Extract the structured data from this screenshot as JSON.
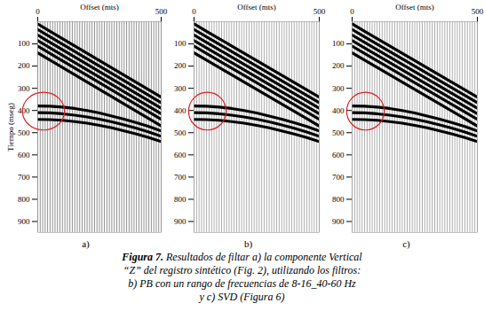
{
  "caption": {
    "label": "Figura 7.",
    "lines": [
      "Resultados de filtar a) la componente Vertical",
      "“Z” del registro sintético (Fig. 2), utilizando los filtros:",
      "b) PB con un rango de frecuencias de 8-16_40-60 Hz",
      "y c) SVD  (Figura 6)"
    ]
  },
  "chart_data": [
    {
      "type": "line",
      "title": "a)",
      "x_label": "Offset (mts)",
      "y_label": "Tiempo (mseg)",
      "xlim": [
        0,
        500
      ],
      "xticks": [
        0,
        500
      ],
      "ylim": [
        0,
        950
      ],
      "yticks": [
        100,
        200,
        300,
        400,
        500,
        600,
        700,
        800,
        900
      ],
      "x": [
        0,
        50,
        100,
        150,
        200,
        250,
        300,
        350,
        400,
        450,
        500
      ],
      "series": [
        {
          "color": "#000000",
          "values": [
            10,
            43,
            76,
            109,
            142,
            175,
            208,
            241,
            274,
            307,
            340
          ]
        },
        {
          "color": "#000000",
          "values": [
            35,
            68,
            101,
            134,
            167,
            200,
            233,
            266,
            299,
            332,
            365
          ]
        },
        {
          "color": "#000000",
          "values": [
            60,
            93,
            126,
            159,
            192,
            225,
            258,
            291,
            324,
            357,
            390
          ]
        },
        {
          "color": "#000000",
          "values": [
            85,
            118,
            151,
            184,
            217,
            250,
            283,
            316,
            349,
            382,
            415
          ]
        },
        {
          "color": "#000000",
          "values": [
            110,
            143,
            176,
            209,
            242,
            275,
            308,
            341,
            374,
            407,
            440
          ]
        },
        {
          "color": "#000000",
          "values": [
            140,
            173,
            206,
            239,
            272,
            305,
            338,
            371,
            404,
            437,
            470
          ]
        },
        {
          "color": "#000000",
          "values": [
            380,
            381,
            385,
            391,
            400,
            411,
            425,
            439,
            455,
            472,
            492
          ]
        },
        {
          "color": "#000000",
          "values": [
            410,
            411,
            415,
            421,
            429,
            439,
            451,
            465,
            480,
            497,
            516
          ]
        },
        {
          "color": "#000000",
          "values": [
            440,
            441,
            444,
            450,
            457,
            467,
            478,
            492,
            506,
            522,
            540
          ]
        }
      ],
      "traces": [
        0,
        10,
        20,
        30,
        40,
        50,
        60,
        70,
        80,
        90,
        100,
        110,
        120,
        130,
        140,
        150,
        160,
        170,
        180,
        190,
        200,
        210,
        220,
        230,
        240,
        250,
        260,
        270,
        280,
        290,
        300,
        310,
        320,
        330,
        340,
        350,
        360,
        370,
        380,
        390,
        400,
        410,
        420,
        430,
        440,
        450,
        460,
        470,
        480,
        490,
        500
      ],
      "annotations": [
        {
          "type": "ellipse",
          "x": [
            -60,
            110
          ],
          "y": [
            320,
            490
          ],
          "color": "#e02020"
        }
      ]
    },
    {
      "type": "line",
      "title": "b)",
      "x_label": "Offset (mts)",
      "xlim": [
        0,
        500
      ],
      "xticks": [
        0,
        500
      ],
      "ylim": [
        0,
        950
      ],
      "yticks": [
        100,
        200,
        300,
        400,
        500,
        600,
        700,
        800,
        900
      ],
      "x": [
        0,
        50,
        100,
        150,
        200,
        250,
        300,
        350,
        400,
        450,
        500
      ],
      "series": [
        {
          "color": "#000000",
          "values": [
            10,
            43,
            76,
            109,
            142,
            175,
            208,
            241,
            274,
            307,
            340
          ]
        },
        {
          "color": "#000000",
          "values": [
            35,
            68,
            101,
            134,
            167,
            200,
            233,
            266,
            299,
            332,
            365
          ]
        },
        {
          "color": "#000000",
          "values": [
            60,
            93,
            126,
            159,
            192,
            225,
            258,
            291,
            324,
            357,
            390
          ]
        },
        {
          "color": "#000000",
          "values": [
            85,
            118,
            151,
            184,
            217,
            250,
            283,
            316,
            349,
            382,
            415
          ]
        },
        {
          "color": "#000000",
          "values": [
            110,
            143,
            176,
            209,
            242,
            275,
            308,
            341,
            374,
            407,
            440
          ]
        },
        {
          "color": "#000000",
          "values": [
            140,
            173,
            206,
            239,
            272,
            305,
            338,
            371,
            404,
            437,
            470
          ]
        },
        {
          "color": "#000000",
          "values": [
            380,
            381,
            385,
            391,
            400,
            411,
            425,
            439,
            455,
            472,
            492
          ]
        },
        {
          "color": "#000000",
          "values": [
            410,
            411,
            415,
            421,
            429,
            439,
            451,
            465,
            480,
            497,
            516
          ]
        },
        {
          "color": "#000000",
          "values": [
            440,
            441,
            444,
            450,
            457,
            467,
            478,
            492,
            506,
            522,
            540
          ]
        }
      ],
      "traces": [
        0,
        10,
        20,
        30,
        40,
        50,
        60,
        70,
        80,
        90,
        100,
        110,
        120,
        130,
        140,
        150,
        160,
        170,
        180,
        190,
        200,
        210,
        220,
        230,
        240,
        250,
        260,
        270,
        280,
        290,
        300,
        310,
        320,
        330,
        340,
        350,
        360,
        370,
        380,
        390,
        400,
        410,
        420,
        430,
        440,
        450,
        460,
        470,
        480,
        490,
        500
      ],
      "annotations": [
        {
          "type": "ellipse",
          "x": [
            -20,
            130
          ],
          "y": [
            320,
            490
          ],
          "color": "#e02020"
        }
      ]
    },
    {
      "type": "line",
      "title": "c)",
      "x_label": "Offset (mts)",
      "xlim": [
        0,
        500
      ],
      "xticks": [
        0,
        500
      ],
      "ylim": [
        0,
        950
      ],
      "yticks": [
        100,
        200,
        300,
        400,
        500,
        600,
        700,
        800,
        900
      ],
      "x": [
        0,
        50,
        100,
        150,
        200,
        250,
        300,
        350,
        400,
        450,
        500
      ],
      "series": [
        {
          "color": "#000000",
          "values": [
            10,
            43,
            76,
            109,
            142,
            175,
            208,
            241,
            274,
            307,
            340
          ]
        },
        {
          "color": "#000000",
          "values": [
            35,
            68,
            101,
            134,
            167,
            200,
            233,
            266,
            299,
            332,
            365
          ]
        },
        {
          "color": "#000000",
          "values": [
            60,
            93,
            126,
            159,
            192,
            225,
            258,
            291,
            324,
            357,
            390
          ]
        },
        {
          "color": "#000000",
          "values": [
            85,
            118,
            151,
            184,
            217,
            250,
            283,
            316,
            349,
            382,
            415
          ]
        },
        {
          "color": "#000000",
          "values": [
            110,
            143,
            176,
            209,
            242,
            275,
            308,
            341,
            374,
            407,
            440
          ]
        },
        {
          "color": "#000000",
          "values": [
            140,
            173,
            206,
            239,
            272,
            305,
            338,
            371,
            404,
            437,
            470
          ]
        },
        {
          "color": "#000000",
          "values": [
            380,
            381,
            385,
            391,
            400,
            411,
            425,
            439,
            455,
            472,
            492
          ]
        },
        {
          "color": "#000000",
          "values": [
            410,
            411,
            415,
            421,
            429,
            439,
            451,
            465,
            480,
            497,
            516
          ]
        },
        {
          "color": "#000000",
          "values": [
            440,
            441,
            444,
            450,
            457,
            467,
            478,
            492,
            506,
            522,
            540
          ]
        }
      ],
      "traces": [
        0,
        10,
        20,
        30,
        40,
        50,
        60,
        70,
        80,
        90,
        100,
        110,
        120,
        130,
        140,
        150,
        160,
        170,
        180,
        190,
        200,
        210,
        220,
        230,
        240,
        250,
        260,
        270,
        280,
        290,
        300,
        310,
        320,
        330,
        340,
        350,
        360,
        370,
        380,
        390,
        400,
        410,
        420,
        430,
        440,
        450,
        460,
        470,
        480,
        490,
        500
      ],
      "annotations": [
        {
          "type": "ellipse",
          "x": [
            -20,
            130
          ],
          "y": [
            320,
            490
          ],
          "color": "#e02020"
        }
      ]
    }
  ]
}
